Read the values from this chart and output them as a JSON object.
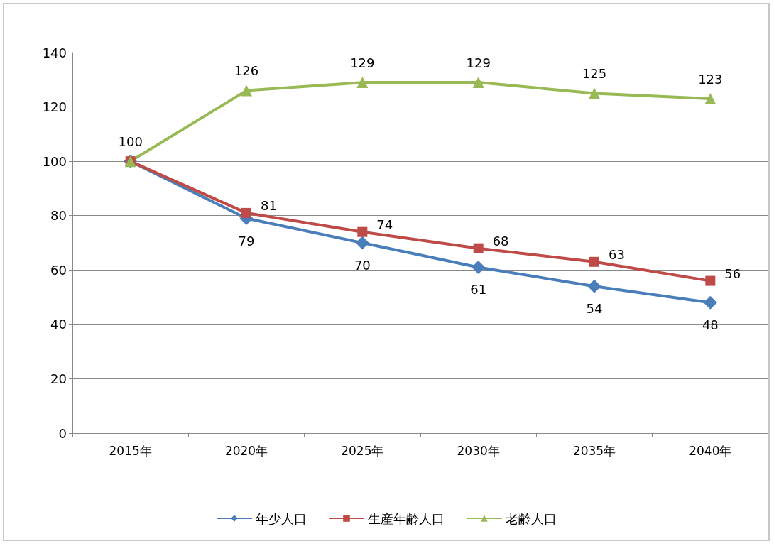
{
  "chart_data": {
    "type": "line",
    "categories": [
      "2015年",
      "2020年",
      "2025年",
      "2030年",
      "2035年",
      "2040年"
    ],
    "series": [
      {
        "name": "年少人口",
        "color": "#4a7ebb",
        "marker": "diamond",
        "values": [
          100,
          79,
          70,
          61,
          54,
          48
        ],
        "value_labels": [
          null,
          "79",
          "70",
          "61",
          "54",
          "48"
        ]
      },
      {
        "name": "生産年齢人口",
        "color": "#be4b48",
        "marker": "square",
        "values": [
          100,
          81,
          74,
          68,
          63,
          56
        ],
        "value_labels": [
          null,
          "81",
          "74",
          "68",
          "63",
          "56"
        ]
      },
      {
        "name": "老齢人口",
        "color": "#98b954",
        "marker": "triangle",
        "values": [
          100,
          126,
          129,
          129,
          125,
          123
        ],
        "value_labels": [
          "100",
          "126",
          "129",
          "129",
          "125",
          "123"
        ]
      }
    ],
    "ylim": [
      0,
      140
    ],
    "yticks": [
      0,
      20,
      40,
      60,
      80,
      100,
      120,
      140
    ],
    "grid": "y",
    "legend": "bottom"
  }
}
